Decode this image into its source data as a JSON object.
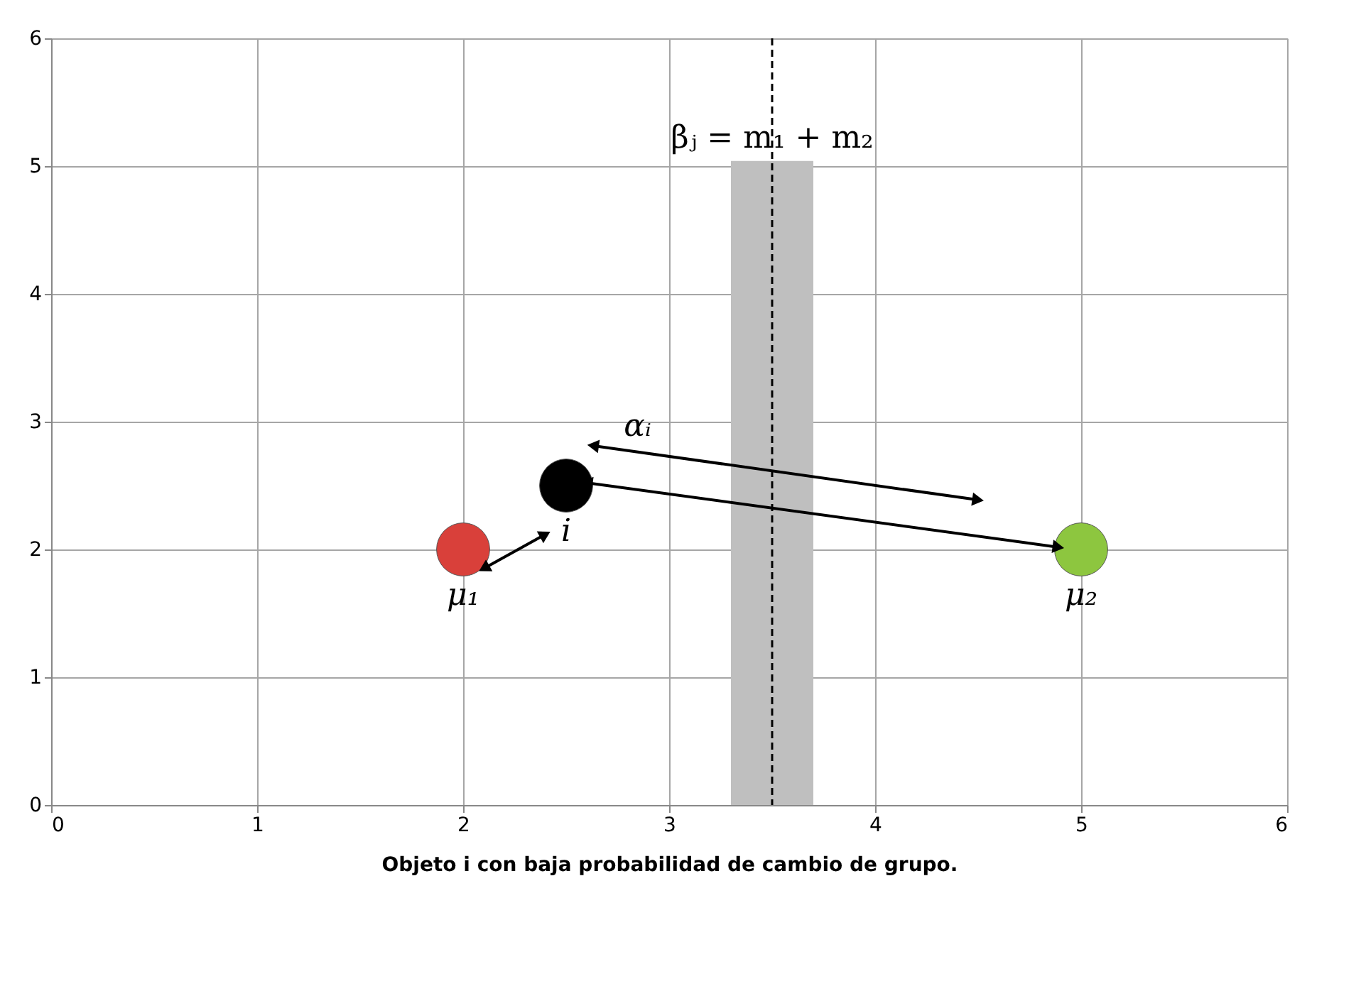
{
  "chart_data": {
    "type": "scatter",
    "xlabel": "Objeto i con baja probabilidad de cambio de grupo.",
    "xlim": [
      0,
      6
    ],
    "ylim": [
      0,
      6
    ],
    "xticks": [
      0,
      1,
      2,
      3,
      4,
      5,
      6
    ],
    "yticks": [
      0,
      1,
      2,
      3,
      4,
      5,
      6
    ],
    "grid": true,
    "marker": "circle",
    "series": [
      {
        "type": "line",
        "color": "#000000",
        "x": [
          2.11,
          2.39
        ],
        "values": [
          1.86,
          2.11
        ],
        "marker": "triangle",
        "line_style": "solid"
      },
      {
        "type": "line",
        "color": "#000000",
        "x": [
          2.64,
          4.49
        ],
        "values": [
          2.81,
          2.39
        ],
        "marker": "triangle",
        "line_style": "solid"
      },
      {
        "type": "line",
        "color": "#000000",
        "x": [
          2.61,
          4.88
        ],
        "values": [
          2.52,
          2.02
        ],
        "marker": "triangle",
        "line_style": "solid"
      },
      {
        "x": [
          2,
          2.5,
          5
        ],
        "values": [
          2,
          2.5,
          2
        ],
        "colors": [
          "#d9403a",
          "#000000",
          "#8dc63f"
        ]
      }
    ],
    "bands": [
      {
        "axis": "x",
        "from": 3.3,
        "to": 3.7,
        "color": "#bfbfbf"
      }
    ],
    "ref_lines": [
      {
        "axis": "x",
        "value": 3.5,
        "label": "βⱼ = m₁ + m₂",
        "color": "#000000",
        "line_style": "dashed"
      }
    ],
    "annotations": [
      {
        "text": "μ₁",
        "x": 2,
        "y": 2
      },
      {
        "text": "i",
        "x": 2.5,
        "y": 2.5
      },
      {
        "text": "μ₂",
        "x": 5,
        "y": 2
      },
      {
        "text": "αᵢ",
        "x": 2.64,
        "y": 2.81
      }
    ]
  }
}
